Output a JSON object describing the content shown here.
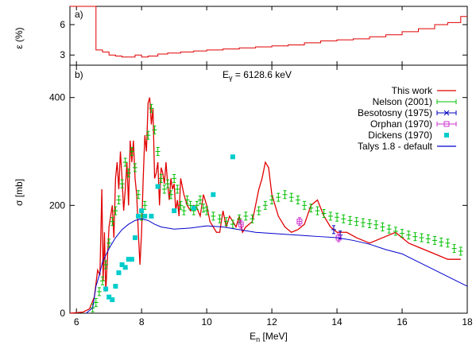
{
  "chart_data": [
    {
      "panel": "a)",
      "type": "line",
      "ylabel": "ε (%)",
      "xlim": [
        5.8,
        18
      ],
      "ylim": [
        2,
        7.8
      ],
      "yticks": [
        3,
        6
      ],
      "grid": false,
      "series": [
        {
          "color": "#e00000",
          "style": "step",
          "x": [
            5.8,
            6.2,
            6.4,
            6.6,
            6.8,
            7.0,
            7.2,
            7.4,
            7.6,
            7.8,
            8.0,
            8.2,
            8.5,
            8.8,
            9.2,
            9.6,
            10.0,
            10.5,
            11.0,
            11.5,
            12.0,
            12.5,
            13.0,
            13.5,
            14.0,
            14.5,
            15.0,
            15.5,
            16.0,
            16.5,
            17.0,
            17.4,
            17.8
          ],
          "y": [
            7.8,
            7.8,
            7.8,
            3.5,
            3.3,
            3.0,
            2.9,
            2.8,
            2.8,
            3.0,
            2.8,
            2.9,
            3.1,
            3.2,
            3.3,
            3.4,
            3.5,
            3.6,
            3.7,
            3.8,
            3.9,
            4.0,
            4.2,
            4.4,
            4.5,
            4.6,
            4.8,
            5.0,
            5.3,
            5.6,
            6.0,
            6.2,
            6.8
          ]
        }
      ]
    },
    {
      "panel": "b)",
      "type": "scatter",
      "xlabel": "E",
      "xlabel_sub": "n",
      "xlabel_unit": " [MeV]",
      "ylabel": "σ [mb]",
      "xlim": [
        5.8,
        18
      ],
      "ylim": [
        0,
        460
      ],
      "xticks": [
        6,
        8,
        10,
        12,
        14,
        16,
        18
      ],
      "yticks": [
        0,
        200,
        400
      ],
      "annotation_prefix": "E",
      "annotation_sub": "γ",
      "annotation_suffix": " = 6128.6 keV",
      "legend_position": "top-right",
      "series": [
        {
          "name": "This work",
          "color": "#e00000",
          "style": "line",
          "x": [
            5.8,
            6.2,
            6.4,
            6.55,
            6.65,
            6.72,
            6.78,
            6.82,
            6.86,
            6.9,
            6.95,
            7.0,
            7.05,
            7.1,
            7.15,
            7.2,
            7.25,
            7.3,
            7.35,
            7.4,
            7.45,
            7.5,
            7.55,
            7.6,
            7.65,
            7.7,
            7.75,
            7.8,
            7.85,
            7.9,
            7.95,
            8.0,
            8.05,
            8.1,
            8.15,
            8.2,
            8.25,
            8.3,
            8.35,
            8.4,
            8.45,
            8.5,
            8.55,
            8.6,
            8.65,
            8.7,
            8.75,
            8.8,
            8.85,
            8.9,
            8.95,
            9.0,
            9.05,
            9.1,
            9.15,
            9.2,
            9.3,
            9.4,
            9.5,
            9.6,
            9.7,
            9.8,
            9.9,
            10.0,
            10.1,
            10.2,
            10.3,
            10.4,
            10.5,
            10.6,
            10.7,
            10.8,
            10.9,
            11.0,
            11.1,
            11.2,
            11.3,
            11.4,
            11.5,
            11.6,
            11.7,
            11.8,
            11.9,
            12.0,
            12.2,
            12.4,
            12.6,
            12.8,
            13.0,
            13.2,
            13.4,
            13.6,
            13.8,
            14.0,
            14.3,
            14.6,
            15.0,
            15.4,
            15.8,
            16.2,
            16.6,
            17.0,
            17.4,
            17.8
          ],
          "y": [
            0,
            2,
            8,
            30,
            80,
            70,
            230,
            60,
            150,
            40,
            100,
            160,
            180,
            200,
            140,
            250,
            280,
            230,
            300,
            250,
            190,
            230,
            280,
            200,
            320,
            280,
            320,
            250,
            220,
            150,
            90,
            150,
            250,
            330,
            300,
            390,
            400,
            350,
            380,
            250,
            260,
            280,
            200,
            270,
            260,
            240,
            280,
            240,
            210,
            250,
            230,
            240,
            190,
            210,
            180,
            250,
            220,
            200,
            190,
            200,
            195,
            180,
            220,
            200,
            170,
            160,
            150,
            150,
            190,
            160,
            180,
            170,
            160,
            180,
            150,
            160,
            165,
            170,
            200,
            230,
            250,
            280,
            270,
            220,
            180,
            160,
            150,
            155,
            165,
            200,
            210,
            180,
            160,
            150,
            150,
            140,
            130,
            140,
            150,
            130,
            120,
            110,
            100,
            100
          ]
        },
        {
          "name": "Nelson (2001)",
          "color": "#00c000",
          "style": "errorbar",
          "x": [
            6.5,
            6.6,
            6.7,
            6.8,
            6.9,
            7.0,
            7.1,
            7.2,
            7.3,
            7.4,
            7.5,
            7.6,
            7.7,
            7.8,
            7.9,
            8.0,
            8.1,
            8.2,
            8.3,
            8.4,
            8.5,
            8.6,
            8.7,
            8.8,
            8.9,
            9.0,
            9.1,
            9.2,
            9.3,
            9.4,
            9.5,
            9.6,
            9.7,
            9.8,
            9.9,
            10.0,
            10.2,
            10.4,
            10.6,
            10.8,
            11.0,
            11.2,
            11.4,
            11.6,
            11.8,
            12.0,
            12.2,
            12.4,
            12.6,
            12.8,
            13.0,
            13.2,
            13.4,
            13.6,
            13.8,
            14.0,
            14.2,
            14.4,
            14.6,
            14.8,
            15.0,
            15.2,
            15.4,
            15.6,
            15.8,
            16.0,
            16.2,
            16.4,
            16.6,
            16.8,
            17.0,
            17.2,
            17.4,
            17.6,
            17.8
          ],
          "y": [
            10,
            20,
            40,
            60,
            90,
            130,
            170,
            190,
            210,
            240,
            280,
            260,
            300,
            270,
            220,
            180,
            200,
            330,
            380,
            340,
            300,
            250,
            230,
            240,
            220,
            250,
            230,
            200,
            190,
            210,
            200,
            190,
            200,
            210,
            195,
            190,
            180,
            175,
            170,
            165,
            175,
            180,
            175,
            190,
            200,
            210,
            215,
            220,
            215,
            210,
            200,
            195,
            190,
            185,
            180,
            178,
            175,
            172,
            170,
            168,
            166,
            164,
            160,
            156,
            152,
            148,
            145,
            142,
            140,
            138,
            135,
            132,
            130,
            120,
            115
          ]
        },
        {
          "name": "Besotosny (1975)",
          "color": "#0000c0",
          "style": "errorbar",
          "x": [
            13.9,
            14.1
          ],
          "y": [
            155,
            145
          ]
        },
        {
          "name": "Orphan (1970)",
          "color": "#cc33cc",
          "style": "errorbar",
          "x": [
            11.05,
            12.85,
            14.05
          ],
          "y": [
            165,
            170,
            140
          ]
        },
        {
          "name": "Dickens (1970)",
          "color": "#00cccc",
          "style": "points",
          "x": [
            6.9,
            7.0,
            7.1,
            7.2,
            7.3,
            7.4,
            7.5,
            7.6,
            7.7,
            7.8,
            7.9,
            8.0,
            8.1,
            8.3,
            8.5,
            9.0,
            9.6,
            10.2,
            10.8
          ],
          "y": [
            45,
            30,
            25,
            50,
            75,
            90,
            85,
            100,
            100,
            140,
            180,
            190,
            180,
            180,
            235,
            190,
            195,
            220,
            290
          ]
        },
        {
          "name": "Talys 1.8 - default",
          "color": "#0000cc",
          "style": "line",
          "x": [
            6.3,
            6.5,
            6.6,
            6.7,
            6.8,
            7.0,
            7.2,
            7.4,
            7.6,
            7.8,
            8.0,
            8.2,
            8.4,
            8.6,
            8.8,
            9.0,
            9.5,
            10.0,
            10.5,
            11.0,
            11.5,
            12.0,
            12.5,
            13.0,
            13.5,
            14.0,
            14.5,
            15.0,
            15.5,
            16.0,
            16.5,
            17.0,
            17.5,
            18.0
          ],
          "y": [
            0,
            10,
            50,
            70,
            95,
            120,
            140,
            155,
            165,
            172,
            175,
            172,
            165,
            160,
            158,
            156,
            158,
            162,
            160,
            155,
            150,
            148,
            146,
            144,
            142,
            140,
            135,
            128,
            118,
            110,
            95,
            80,
            65,
            50
          ]
        }
      ]
    }
  ]
}
